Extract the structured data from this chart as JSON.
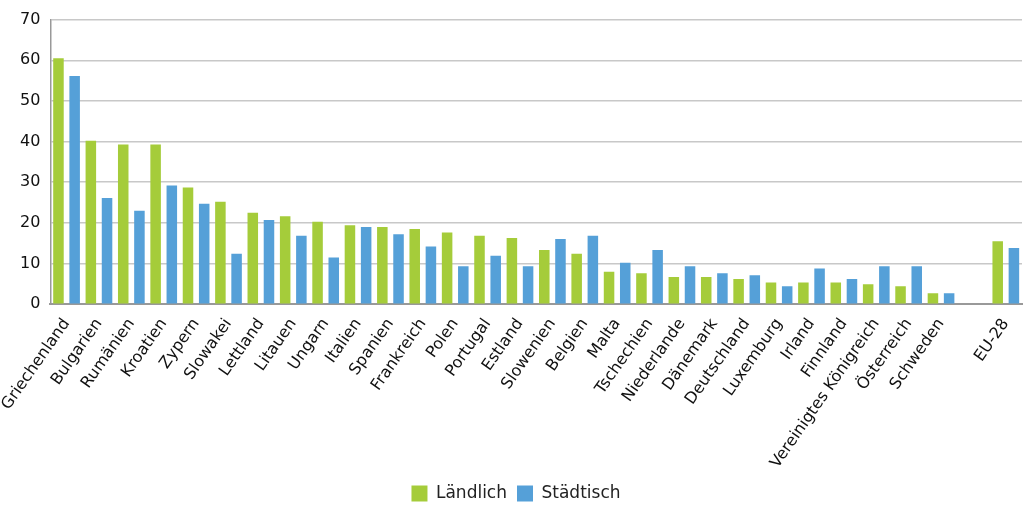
{
  "chart_data": {
    "type": "bar",
    "categories": [
      "Griechenland",
      "Bulgarien",
      "Rumänien",
      "Kroatien",
      "Zypern",
      "Slowakei",
      "Lettland",
      "Litauen",
      "Ungarn",
      "Italien",
      "Spanien",
      "Frankreich",
      "Polen",
      "Portugal",
      "Estland",
      "Slowenien",
      "Belgien",
      "Malta",
      "Tschechien",
      "Niederlande",
      "Dänemark",
      "Deutschland",
      "Luxemburg",
      "Irland",
      "Finnland",
      "Vereinigtes Königreich",
      "Österreich",
      "Schweden",
      null,
      "EU-28"
    ],
    "series": [
      {
        "name": "Ländlich",
        "color": "#a5cc3a",
        "values": [
          60.5,
          40.2,
          39.3,
          39.3,
          28.7,
          25.2,
          22.5,
          21.6,
          20.3,
          19.4,
          19.0,
          18.5,
          17.6,
          16.8,
          16.3,
          13.3,
          12.4,
          8.0,
          7.6,
          6.7,
          6.7,
          6.2,
          5.3,
          5.3,
          5.3,
          4.9,
          4.4,
          2.7,
          null,
          15.5
        ]
      },
      {
        "name": "Städtisch",
        "color": "#55a0d8",
        "values": [
          56.1,
          26.1,
          23.0,
          29.2,
          24.7,
          12.4,
          20.7,
          16.8,
          11.5,
          19.0,
          17.2,
          14.2,
          9.3,
          11.9,
          9.3,
          16.0,
          16.8,
          10.2,
          13.3,
          9.3,
          7.6,
          7.1,
          4.4,
          8.8,
          6.2,
          9.3,
          9.3,
          2.7,
          null,
          13.8
        ]
      }
    ],
    "ylim": [
      0,
      70
    ],
    "yticks": [
      0,
      10,
      20,
      30,
      40,
      50,
      60,
      70
    ],
    "grid": "y",
    "legend": "bottom"
  }
}
